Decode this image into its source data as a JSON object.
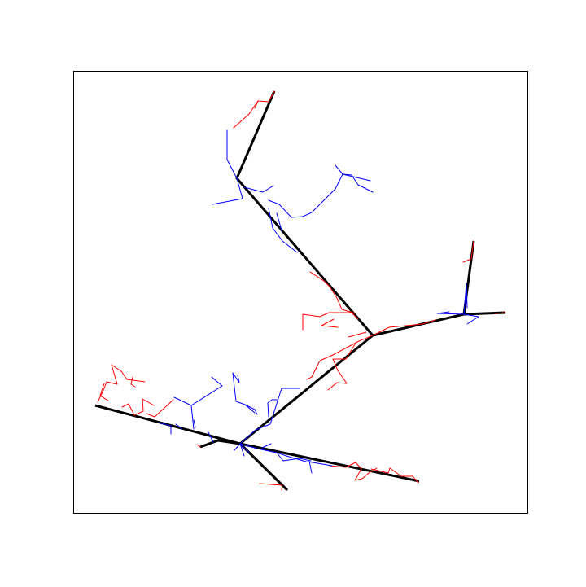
{
  "figure": {
    "colors": {
      "background": "#ffffff",
      "frame": "#000000",
      "trunk": "#000000",
      "branch_a": "#ff0000",
      "branch_b": "#0000ff"
    }
  }
}
